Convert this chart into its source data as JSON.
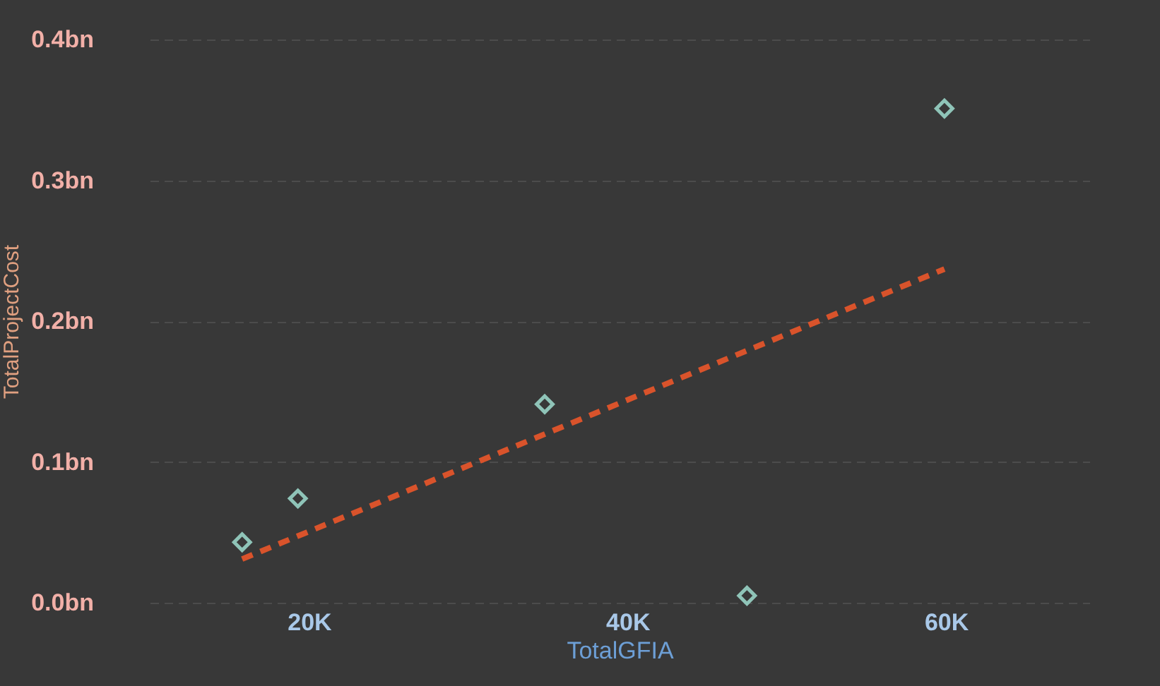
{
  "chart_data": {
    "type": "scatter",
    "xlabel": "TotalGFIA",
    "ylabel": "TotalProjectCost",
    "xlim": [
      10000,
      69000
    ],
    "ylim": [
      0,
      0.4
    ],
    "xticks": [
      {
        "value": 20000,
        "label": "20K"
      },
      {
        "value": 40000,
        "label": "40K"
      },
      {
        "value": 60000,
        "label": "60K"
      }
    ],
    "yticks": [
      {
        "value": 0,
        "label": "0.0bn"
      },
      {
        "value": 0.1,
        "label": "0.1bn"
      },
      {
        "value": 0.2,
        "label": "0.2bn"
      },
      {
        "value": 0.3,
        "label": "0.3bn"
      },
      {
        "value": 0.4,
        "label": "0.4bn"
      }
    ],
    "grid": "y",
    "marker": "diamond",
    "series": [
      {
        "type": "scatter",
        "color": "#8fc4b8",
        "x": [
          15800,
          19300,
          34800,
          47500,
          59900
        ],
        "values": [
          0.043,
          0.074,
          0.141,
          0.005,
          0.351
        ]
      },
      {
        "type": "line",
        "color": "#d9532b",
        "line_style": "dashed",
        "marker": "none",
        "x": [
          15800,
          59900
        ],
        "values": [
          0.031,
          0.237
        ]
      }
    ]
  }
}
